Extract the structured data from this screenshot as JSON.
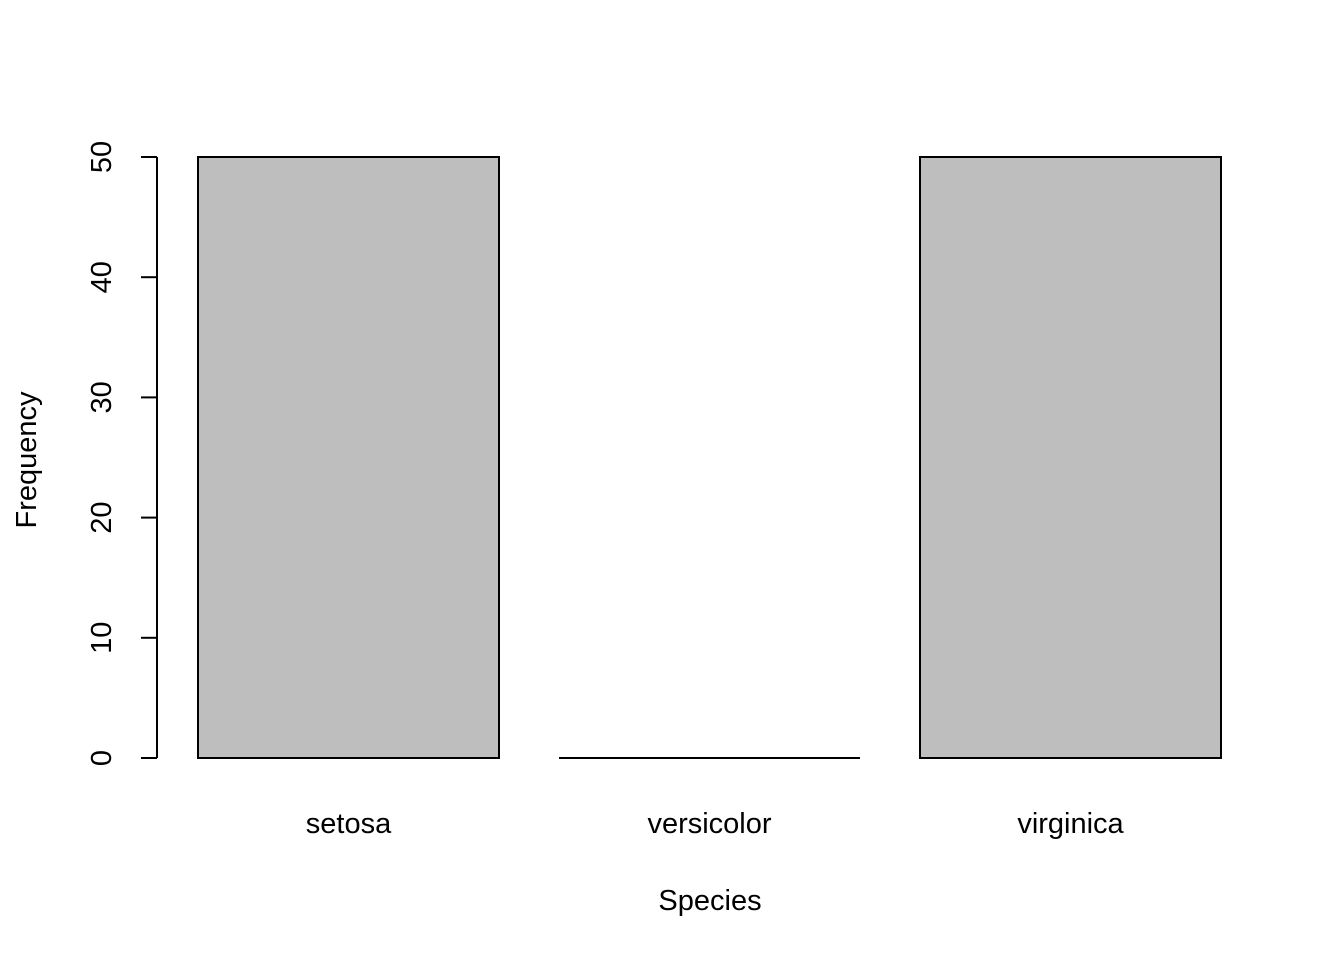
{
  "chart_data": {
    "type": "bar",
    "title": "",
    "xlabel": "Species",
    "ylabel": "Frequency",
    "categories": [
      "setosa",
      "versicolor",
      "virginica"
    ],
    "values": [
      50,
      0,
      50
    ],
    "ylim": [
      0,
      50
    ],
    "yticks": [
      0,
      10,
      20,
      30,
      40,
      50
    ],
    "grid": false,
    "legend": "none",
    "bar_color": "#bebebe",
    "border_color": "#000000"
  }
}
